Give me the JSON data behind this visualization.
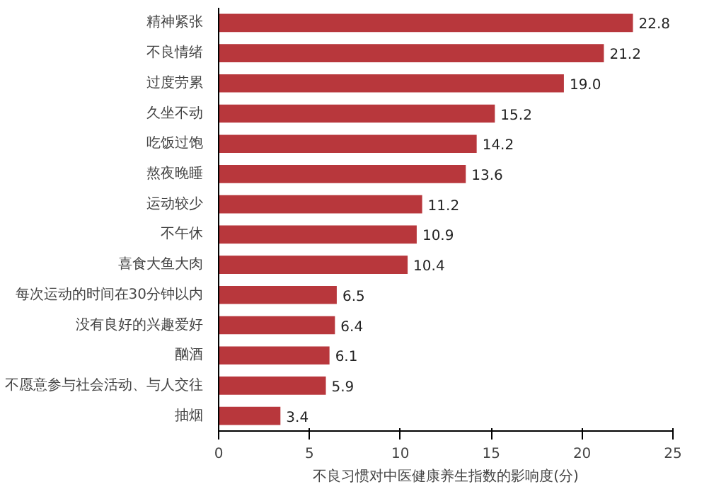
{
  "chart_data": {
    "type": "bar",
    "orientation": "horizontal",
    "xlabel": "不良习惯对中医健康养生指数的影响度(分)",
    "categories": [
      "精神紧张",
      "不良情绪",
      "过度劳累",
      "久坐不动",
      "吃饭过饱",
      "熬夜晚睡",
      "运动较少",
      "不午休",
      "喜食大鱼大肉",
      "每次运动的时间在30分钟以内",
      "没有良好的兴趣爱好",
      "酗酒",
      "不愿意参与社会活动、与人交往",
      "抽烟"
    ],
    "values": [
      22.8,
      21.2,
      19.0,
      15.2,
      14.2,
      13.6,
      11.2,
      10.9,
      10.4,
      6.5,
      6.4,
      6.1,
      5.9,
      3.4
    ],
    "value_labels": [
      "22.8",
      "21.2",
      "19.0",
      "15.2",
      "14.2",
      "13.6",
      "11.2",
      "10.9",
      "10.4",
      "6.5",
      "6.4",
      "6.1",
      "5.9",
      "3.4"
    ],
    "color": "#b8373c",
    "xlim": [
      0,
      25
    ],
    "xticks": [
      0,
      5,
      10,
      15,
      20,
      25
    ],
    "grid": false
  }
}
